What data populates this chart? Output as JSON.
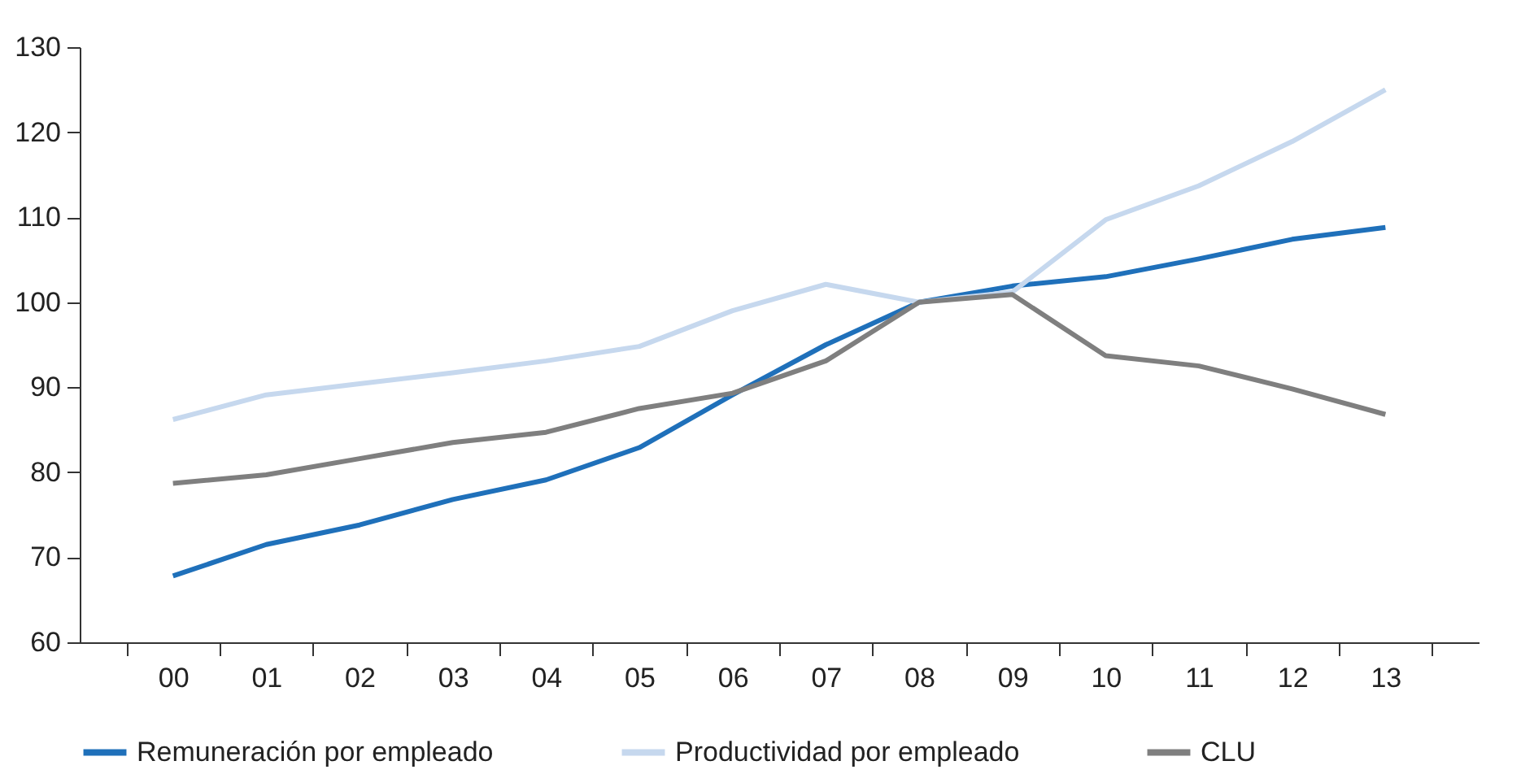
{
  "chart_data": {
    "type": "line",
    "categories": [
      "00",
      "01",
      "02",
      "03",
      "04",
      "05",
      "06",
      "07",
      "08",
      "09",
      "10",
      "11",
      "12",
      "13"
    ],
    "series": [
      {
        "name": "Remuneración por empleado",
        "color": "#1f70ba",
        "values": [
          67.8,
          71.5,
          73.8,
          76.8,
          79.1,
          82.9,
          89.1,
          95.0,
          100,
          101.9,
          103,
          105.1,
          107.4,
          108.8
        ]
      },
      {
        "name": "Productividad por empleado",
        "color": "#c6d8ee",
        "values": [
          86.2,
          89.1,
          90.4,
          91.7,
          93.1,
          94.8,
          99.0,
          102.1,
          100,
          101.2,
          109.7,
          113.7,
          118.9,
          125.0
        ]
      },
      {
        "name": "CLU",
        "color": "#7f7f7f",
        "values": [
          78.7,
          79.7,
          81.6,
          83.5,
          84.7,
          87.5,
          89.3,
          93.1,
          100,
          100.9,
          93.7,
          92.5,
          89.8,
          86.8
        ]
      }
    ],
    "ylim": [
      60,
      130
    ],
    "yticks": [
      60,
      70,
      80,
      90,
      100,
      110,
      120,
      130
    ],
    "grid": false,
    "legend": "bottom",
    "marker": "none",
    "line_style": "solid"
  }
}
